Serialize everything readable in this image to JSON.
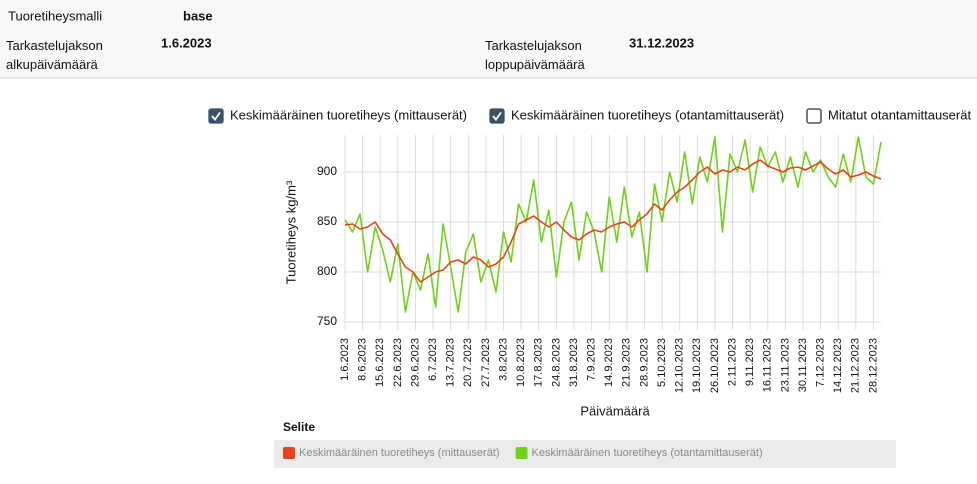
{
  "header": {
    "fields": [
      {
        "label": "Tuoretiheysmalli",
        "value": "base"
      },
      {
        "label": "Tarkastelujakson alkupäivämäärä",
        "value": "1.6.2023"
      },
      {
        "label": "Tarkastelujakson loppupäivämäärä",
        "value": "31.12.2023"
      }
    ]
  },
  "toggles": [
    {
      "label": "Keskimääräinen tuoretiheys (mittauserät)",
      "checked": true
    },
    {
      "label": "Keskimääräinen tuoretiheys (otantamittauserät)",
      "checked": true
    },
    {
      "label": "Mitatut otantamittauserät",
      "checked": false
    }
  ],
  "chart_data": {
    "type": "line",
    "y_label": "Tuoretiheys kg/m³",
    "x_label": "Päivämäärä",
    "legend_title": "Selite",
    "x": [
      "1.6.2023",
      "4.6.2023",
      "7.6.2023",
      "10.6.2023",
      "13.6.2023",
      "16.6.2023",
      "19.6.2023",
      "22.6.2023",
      "25.6.2023",
      "28.6.2023",
      "1.7.2023",
      "4.7.2023",
      "7.7.2023",
      "10.7.2023",
      "13.7.2023",
      "16.7.2023",
      "19.7.2023",
      "22.7.2023",
      "25.7.2023",
      "28.7.2023",
      "31.7.2023",
      "3.8.2023",
      "6.8.2023",
      "9.8.2023",
      "12.8.2023",
      "15.8.2023",
      "18.8.2023",
      "21.8.2023",
      "24.8.2023",
      "27.8.2023",
      "30.8.2023",
      "2.9.2023",
      "5.9.2023",
      "8.9.2023",
      "11.9.2023",
      "14.9.2023",
      "17.9.2023",
      "20.9.2023",
      "23.9.2023",
      "26.9.2023",
      "29.9.2023",
      "2.10.2023",
      "5.10.2023",
      "8.10.2023",
      "11.10.2023",
      "14.10.2023",
      "17.10.2023",
      "20.10.2023",
      "23.10.2023",
      "26.10.2023",
      "29.10.2023",
      "1.11.2023",
      "4.11.2023",
      "7.11.2023",
      "10.11.2023",
      "13.11.2023",
      "16.11.2023",
      "19.11.2023",
      "22.11.2023",
      "25.11.2023",
      "28.11.2023",
      "1.12.2023",
      "4.12.2023",
      "7.12.2023",
      "10.12.2023",
      "13.12.2023",
      "16.12.2023",
      "19.12.2023",
      "22.12.2023",
      "25.12.2023",
      "28.12.2023",
      "31.12.2023"
    ],
    "series": [
      {
        "name": "Keskimääräinen tuoretiheys (mittauserät)",
        "color": "#e8431a",
        "values": [
          847,
          848,
          843,
          845,
          850,
          838,
          832,
          818,
          805,
          800,
          790,
          795,
          800,
          802,
          810,
          812,
          808,
          815,
          812,
          805,
          808,
          815,
          830,
          848,
          852,
          856,
          850,
          845,
          850,
          842,
          835,
          832,
          838,
          842,
          840,
          845,
          848,
          850,
          845,
          852,
          858,
          868,
          862,
          872,
          880,
          885,
          892,
          900,
          905,
          898,
          902,
          900,
          905,
          902,
          908,
          912,
          906,
          903,
          900,
          904,
          905,
          902,
          906,
          910,
          903,
          898,
          902,
          895,
          897,
          900,
          896,
          893
        ]
      },
      {
        "name": "Keskimääräinen tuoretiheys (otantamittauserät)",
        "color": "#6dd314",
        "values": [
          852,
          840,
          858,
          800,
          845,
          822,
          790,
          828,
          760,
          800,
          782,
          818,
          765,
          848,
          805,
          760,
          820,
          838,
          790,
          812,
          780,
          840,
          810,
          868,
          850,
          892,
          830,
          862,
          795,
          850,
          870,
          812,
          860,
          840,
          800,
          875,
          830,
          885,
          835,
          860,
          800,
          888,
          850,
          900,
          870,
          920,
          868,
          915,
          890,
          935,
          840,
          918,
          900,
          932,
          880,
          925,
          905,
          920,
          890,
          915,
          885,
          920,
          900,
          912,
          895,
          885,
          918,
          890,
          935,
          895,
          888,
          930
        ]
      }
    ],
    "xlim": [
      "1.6.2023",
      "31.12.2023"
    ],
    "xticks": [
      "1.6.2023",
      "8.6.2023",
      "15.6.2023",
      "22.6.2023",
      "29.6.2023",
      "6.7.2023",
      "13.7.2023",
      "20.7.2023",
      "27.7.2023",
      "3.8.2023",
      "10.8.2023",
      "17.8.2023",
      "24.8.2023",
      "31.8.2023",
      "7.9.2023",
      "14.9.2023",
      "21.9.2023",
      "28.9.2023",
      "5.10.2023",
      "12.10.2023",
      "19.10.2023",
      "26.10.2023",
      "2.11.2023",
      "9.11.2023",
      "16.11.2023",
      "23.11.2023",
      "30.11.2023",
      "7.12.2023",
      "14.12.2023",
      "21.12.2023",
      "28.12.2023"
    ],
    "ylim": [
      742,
      937
    ],
    "yticks": [
      750,
      800,
      850,
      900
    ],
    "grid": true
  }
}
